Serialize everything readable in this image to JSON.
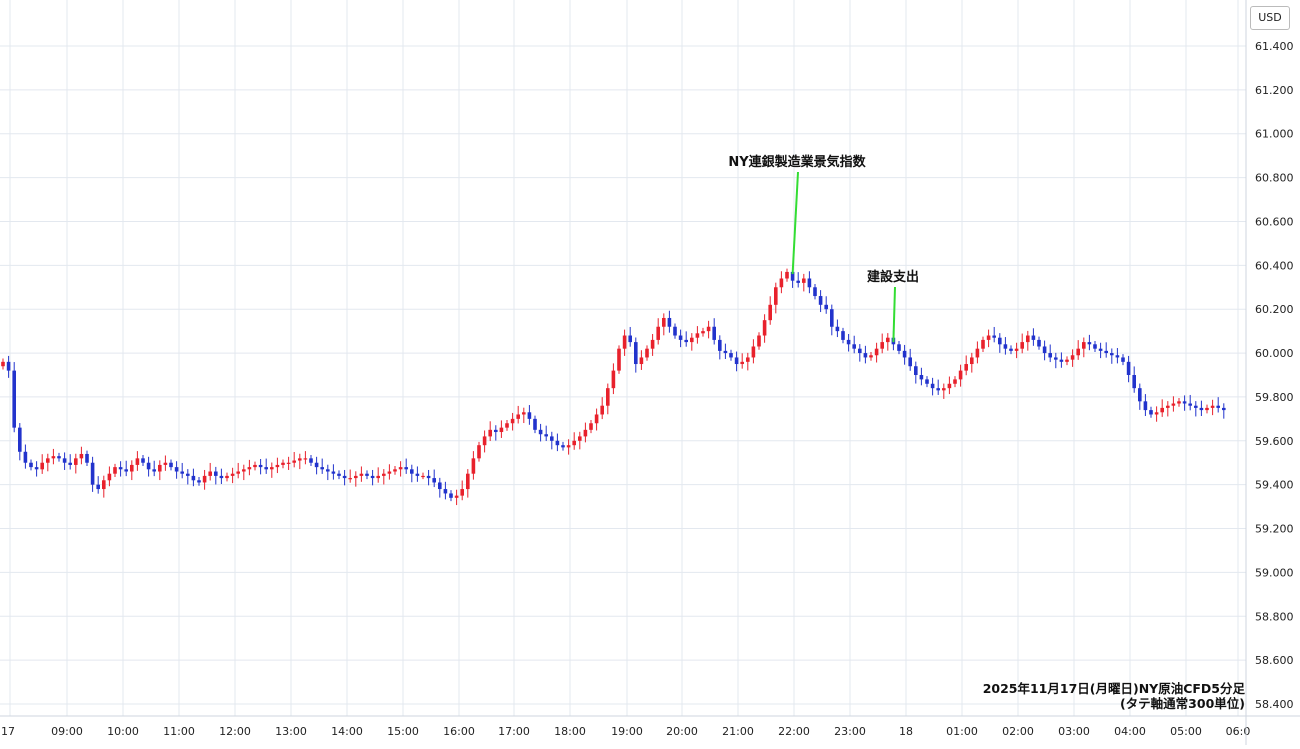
{
  "currency": "USD",
  "caption_line1": "2025年11月17日(月曜日)NY原油CFD5分足",
  "caption_line2": "(タテ軸通常300単位)",
  "chart_data": {
    "type": "candlestick",
    "title": "",
    "xlabel": "",
    "ylabel": "",
    "ylim": [
      58.4,
      61.4
    ],
    "y_ticks": [
      "58.400",
      "58.600",
      "58.800",
      "59.000",
      "59.200",
      "59.400",
      "59.600",
      "59.800",
      "60.000",
      "60.200",
      "60.400",
      "60.600",
      "60.800",
      "61.000",
      "61.200",
      "61.400"
    ],
    "x_tick_labels": [
      "17",
      "09:00",
      "10:00",
      "11:00",
      "12:00",
      "13:00",
      "14:00",
      "15:00",
      "16:00",
      "17:00",
      "18:00",
      "19:00",
      "20:00",
      "21:00",
      "22:00",
      "23:00",
      "18",
      "01:00",
      "02:00",
      "03:00",
      "04:00",
      "05:00",
      "06:0"
    ],
    "colors": {
      "up": "#e8212c",
      "down": "#2233cc",
      "grid": "#e3e8ef",
      "annotation_line": "#33dd33"
    },
    "annotations": [
      {
        "text": "NY連銀製造業景気指数",
        "target_bar": 141,
        "price": 60.36
      },
      {
        "text": "建設支出",
        "target_bar": 159,
        "price": 60.05
      }
    ],
    "closes": [
      59.96,
      59.92,
      59.66,
      59.55,
      59.5,
      59.48,
      59.47,
      59.5,
      59.52,
      59.53,
      59.52,
      59.5,
      59.49,
      59.52,
      59.54,
      59.5,
      59.4,
      59.38,
      59.42,
      59.45,
      59.48,
      59.47,
      59.46,
      59.49,
      59.52,
      59.5,
      59.47,
      59.46,
      59.49,
      59.5,
      59.48,
      59.46,
      59.45,
      59.44,
      59.42,
      59.41,
      59.44,
      59.46,
      59.44,
      59.43,
      59.44,
      59.45,
      59.46,
      59.47,
      59.48,
      59.49,
      59.48,
      59.47,
      59.48,
      59.49,
      59.5,
      59.5,
      59.51,
      59.52,
      59.52,
      59.5,
      59.48,
      59.47,
      59.46,
      59.45,
      59.44,
      59.43,
      59.43,
      59.44,
      59.45,
      59.44,
      59.43,
      59.44,
      59.45,
      59.46,
      59.47,
      59.48,
      59.47,
      59.45,
      59.44,
      59.44,
      59.43,
      59.41,
      59.38,
      59.36,
      59.34,
      59.35,
      59.38,
      59.45,
      59.52,
      59.58,
      59.62,
      59.65,
      59.64,
      59.66,
      59.68,
      59.7,
      59.72,
      59.73,
      59.7,
      59.65,
      59.63,
      59.62,
      59.6,
      59.58,
      59.57,
      59.58,
      59.6,
      59.62,
      59.65,
      59.68,
      59.72,
      59.76,
      59.84,
      59.92,
      60.02,
      60.08,
      60.05,
      59.95,
      59.98,
      60.02,
      60.06,
      60.12,
      60.16,
      60.12,
      60.08,
      60.06,
      60.05,
      60.07,
      60.09,
      60.1,
      60.12,
      60.06,
      60.01,
      60.0,
      59.98,
      59.95,
      59.96,
      59.98,
      60.03,
      60.08,
      60.15,
      60.22,
      60.3,
      60.34,
      60.37,
      60.33,
      60.32,
      60.34,
      60.3,
      60.26,
      60.22,
      60.2,
      60.12,
      60.1,
      60.06,
      60.04,
      60.02,
      60.0,
      59.98,
      59.99,
      60.02,
      60.05,
      60.07,
      60.04,
      60.01,
      59.98,
      59.94,
      59.9,
      59.88,
      59.86,
      59.84,
      59.83,
      59.84,
      59.86,
      59.88,
      59.92,
      59.95,
      59.98,
      60.02,
      60.06,
      60.08,
      60.07,
      60.04,
      60.02,
      60.01,
      60.02,
      60.05,
      60.08,
      60.06,
      60.03,
      60.0,
      59.98,
      59.97,
      59.96,
      59.97,
      59.99,
      60.02,
      60.05,
      60.04,
      60.02,
      60.01,
      60.0,
      59.99,
      59.98,
      59.96,
      59.9,
      59.84,
      59.78,
      59.74,
      59.72,
      59.73,
      59.75,
      59.76,
      59.77,
      59.78,
      59.77,
      59.76,
      59.75,
      59.74,
      59.75,
      59.76,
      59.75,
      59.74
    ]
  }
}
